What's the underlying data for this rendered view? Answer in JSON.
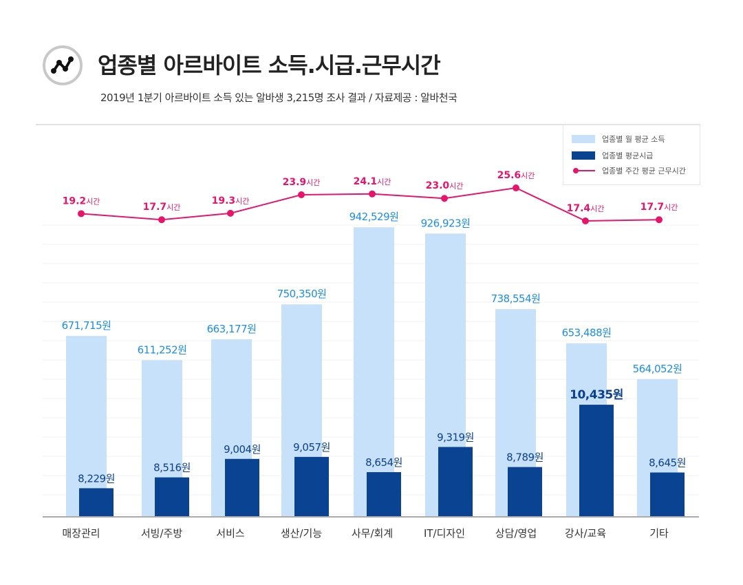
{
  "header": {
    "title": "업종별 아르바이트 소득.시급.근무시간",
    "subtitle": "2019년 1분기 아르바이트 소득 있는 알바생 3,215명 조사 결과 / 자료제공 : 알바천국"
  },
  "colors": {
    "income": "#c7e1fb",
    "wage": "#0b4393",
    "hours": "#e8146a",
    "income_label": "#1b8ee6",
    "wage_label": "#0b3f8f"
  },
  "chart_data": {
    "type": "bar",
    "title": "업종별 아르바이트 소득.시급.근무시간",
    "categories": [
      "매장관리",
      "서빙/주방",
      "서비스",
      "생산/기능",
      "사무/회계",
      "IT/디자인",
      "상담/영업",
      "강사/교육",
      "기타"
    ],
    "series": [
      {
        "name": "업종별 월 평균 소득",
        "type": "bar",
        "values": [
          671715,
          611252,
          663177,
          750350,
          942529,
          926923,
          738554,
          653488,
          564052
        ],
        "labels": [
          "671,715원",
          "611,252원",
          "663,177원",
          "750,350원",
          "942,529원",
          "926,923원",
          "738,554원",
          "653,488원",
          "564,052원"
        ]
      },
      {
        "name": "업종별 평균시급",
        "type": "bar",
        "values": [
          8229,
          8516,
          9004,
          9057,
          8654,
          9319,
          8789,
          10435,
          8645
        ],
        "labels": [
          "8,229원",
          "8,516원",
          "9,004원",
          "9,057원",
          "8,654원",
          "9,319원",
          "8,789원",
          "10,435원",
          "8,645원"
        ]
      },
      {
        "name": "업종별 주간 평균 근무시간",
        "type": "line",
        "values": [
          19.2,
          17.7,
          19.3,
          23.9,
          24.1,
          23.0,
          25.6,
          17.4,
          17.7
        ],
        "labels": [
          "19.2",
          "17.7",
          "19.3",
          "23.9",
          "24.1",
          "23.0",
          "25.6",
          "17.4",
          "17.7"
        ],
        "unit": "시간"
      }
    ],
    "legend": "top-right",
    "grid": true
  }
}
